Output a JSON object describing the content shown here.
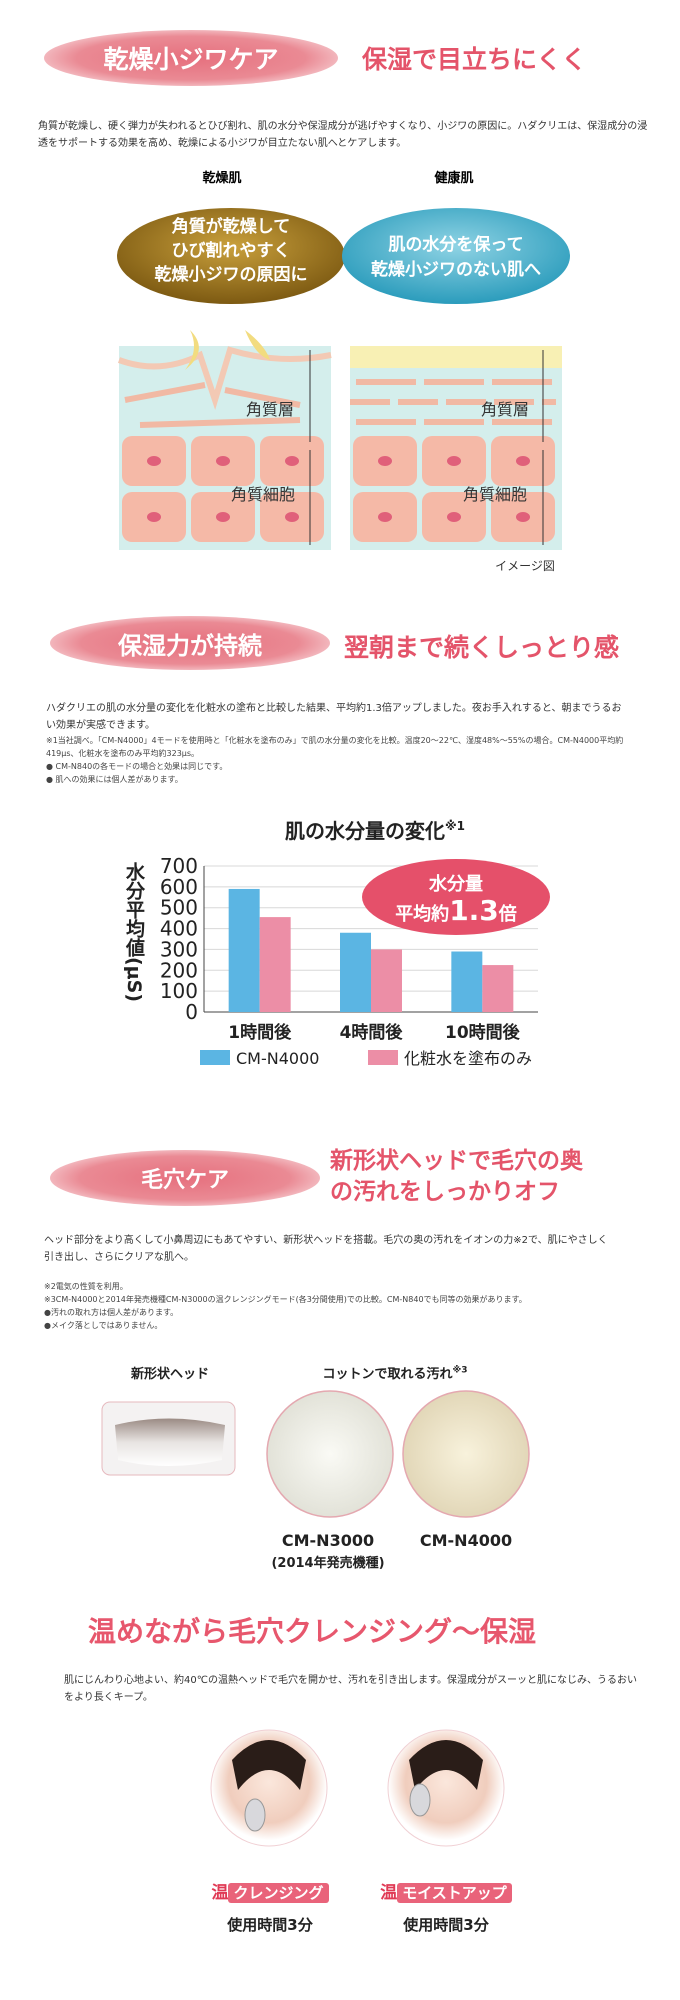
{
  "sections": [
    {
      "heading": "乾燥小ジワケア",
      "subheading": "保湿で目立ちにくく",
      "body": "角質が乾燥し、硬く弾力が失われるとひび割れ、肌の水分や保湿成分が逃げやすくなり、小ジワの原因に。ハダクリエは、保湿成分の浸透をサポートする効果を高め、乾燥による小ジワが目立たない肌へとケアします。",
      "diagram": {
        "left": {
          "title": "乾燥肌",
          "bubble": [
            "角質が乾燥して",
            "ひび割れやすく",
            "乾燥小ジワの原因に"
          ],
          "layer_label": "角質層",
          "cell_label": "角質細胞"
        },
        "right": {
          "title": "健康肌",
          "bubble": [
            "肌の水分を保って",
            "乾燥小ジワのない肌へ"
          ],
          "layer_label": "角質層",
          "cell_label": "角質細胞"
        },
        "caption": "イメージ図"
      }
    },
    {
      "heading": "保湿力が持続",
      "subheading": "翌朝まで続くしっとり感",
      "body": "ハダクリエの肌の水分量の変化を化粧水の塗布と比較した結果、平均約1.3倍アップしました。夜お手入れすると、朝までうるおい効果が実感できます。",
      "notes": [
        "※1当社調べ。「CM-N4000」4モードを使用時と「化粧水を塗布のみ」で肌の水分量の変化を比較。温度20～22℃、湿度48%～55%の場合。CM-N4000平均約419μs、化粧水を塗布のみ平均約323μs。",
        "● CM-N840の各モードの場合と効果は同じです。",
        "● 肌への効果には個人差があります。"
      ]
    },
    {
      "heading": "毛穴ケア",
      "subheading": [
        "新形状ヘッドで毛穴の奥",
        "の汚れをしっかりオフ"
      ],
      "body": "ヘッド部分をより高くして小鼻周辺にもあてやすい、新形状ヘッドを搭載。毛穴の奥の汚れをイオンの力※2で、肌にやさしく引き出し、さらにクリアな肌へ。",
      "notes": [
        "※2電気の性質を利用。",
        "※3CM-N4000と2014年発売機種CM-N3000の温クレンジングモード(各3分間使用)での比較。CM-N840でも同等の効果があります。",
        "●汚れの取れ方は個人差があります。",
        "●メイク落としではありません。"
      ],
      "head_label": "新形状ヘッド",
      "cotton_label": "コットンで取れる汚れ",
      "cotton_note": "※3",
      "cottons": [
        {
          "model": "CM-N3000",
          "note": "(2014年発売機種)"
        },
        {
          "model": "CM-N4000"
        }
      ]
    },
    {
      "heading": "温めながら毛穴クレンジング～保湿",
      "body": "肌にじんわり心地よい、約40℃の温熱ヘッドで毛穴を開かせ、汚れを引き出します。保湿成分がスーッと肌になじみ、うるおいをより長くキープ。",
      "items": [
        {
          "badge": "温",
          "label": "クレンジング",
          "time": "使用時間3分"
        },
        {
          "badge": "温",
          "label": "モイストアップ",
          "time": "使用時間3分"
        }
      ]
    }
  ],
  "chart_data": {
    "type": "bar",
    "title": "肌の水分量の変化",
    "title_note": "※1",
    "y_label": "水分平均値(μS)",
    "categories": [
      "1時間後",
      "4時間後",
      "10時間後"
    ],
    "series": [
      {
        "name": "CM-N4000",
        "color": "#5bb5e3",
        "values": [
          590,
          380,
          290
        ]
      },
      {
        "name": "化粧水を塗布のみ",
        "color": "#ec8ea6",
        "values": [
          455,
          300,
          225
        ]
      }
    ],
    "ylim": [
      0,
      700
    ],
    "yticks": [
      0,
      100,
      200,
      300,
      400,
      500,
      600,
      700
    ],
    "grid": true,
    "annotation": {
      "line1": "水分量",
      "prefix": "平均約",
      "value": "1.3",
      "suffix": "倍"
    }
  }
}
